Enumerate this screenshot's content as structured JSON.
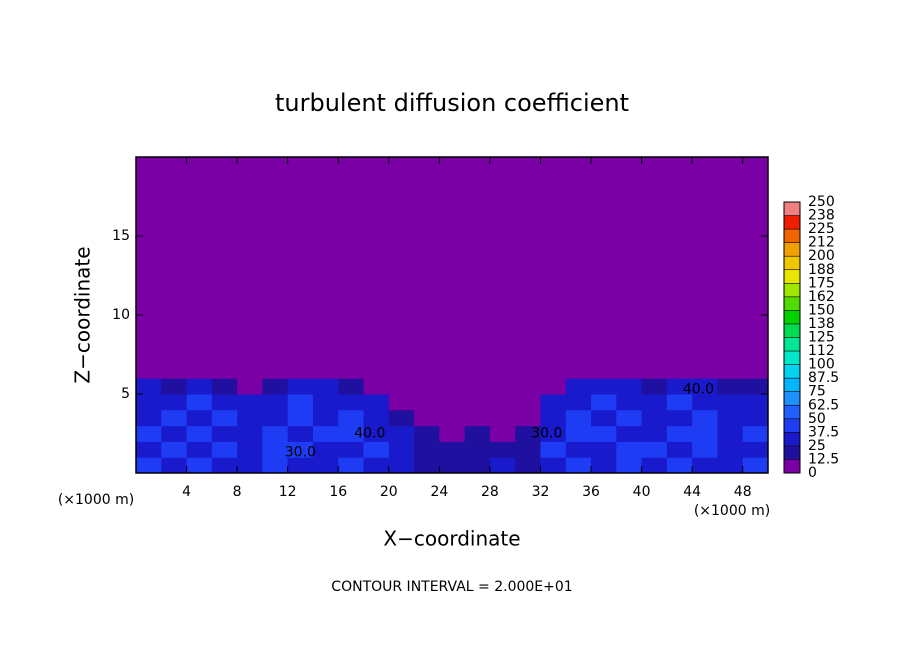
{
  "chart_data": {
    "type": "heatmap",
    "title": "turbulent diffusion coefficient",
    "xlabel": "X−coordinate",
    "ylabel": "Z−coordinate",
    "x_unit": "(×1000 m)",
    "y_unit": "(×1000 m)",
    "footnote": "CONTOUR INTERVAL = 2.000E+01",
    "xlim": [
      0,
      50
    ],
    "ylim": [
      0,
      20
    ],
    "xticks": [
      4,
      8,
      12,
      16,
      20,
      24,
      28,
      32,
      36,
      40,
      44,
      48
    ],
    "yticks": [
      5,
      10,
      15
    ],
    "x_edges": [
      0,
      2,
      4,
      6,
      8,
      10,
      12,
      14,
      16,
      18,
      20,
      22,
      24,
      26,
      28,
      30,
      32,
      34,
      36,
      38,
      40,
      42,
      44,
      46,
      48,
      50
    ],
    "y_edges": [
      0,
      1,
      2,
      3,
      4,
      5,
      6,
      20
    ],
    "z": [
      [
        45,
        35,
        40,
        30,
        35,
        40,
        30,
        35,
        40,
        30,
        25,
        20,
        15,
        20,
        25,
        15,
        35,
        45,
        30,
        40,
        35,
        40,
        30,
        35,
        40
      ],
      [
        35,
        45,
        30,
        40,
        35,
        45,
        40,
        30,
        35,
        40,
        30,
        20,
        15,
        20,
        15,
        20,
        40,
        30,
        35,
        40,
        45,
        35,
        40,
        30,
        35
      ],
      [
        40,
        30,
        45,
        30,
        35,
        40,
        35,
        45,
        40,
        35,
        25,
        15,
        10,
        15,
        10,
        15,
        35,
        45,
        40,
        30,
        35,
        40,
        45,
        35,
        40
      ],
      [
        35,
        40,
        35,
        40,
        30,
        35,
        40,
        35,
        45,
        30,
        15,
        10,
        10,
        5,
        5,
        10,
        30,
        40,
        35,
        40,
        30,
        35,
        40,
        35,
        30
      ],
      [
        30,
        35,
        40,
        30,
        25,
        35,
        40,
        35,
        30,
        25,
        10,
        5,
        5,
        5,
        5,
        5,
        25,
        35,
        40,
        35,
        30,
        40,
        35,
        30,
        35
      ],
      [
        25,
        20,
        25,
        15,
        10,
        20,
        30,
        25,
        20,
        10,
        5,
        0,
        0,
        0,
        0,
        0,
        10,
        25,
        30,
        25,
        20,
        30,
        25,
        20,
        15
      ],
      [
        0,
        0,
        0,
        0,
        0,
        0,
        0,
        0,
        0,
        0,
        0,
        0,
        0,
        0,
        0,
        0,
        0,
        0,
        0,
        0,
        0,
        0,
        0,
        0,
        0
      ]
    ],
    "cbar_ticks": [
      0,
      12.5,
      25,
      37.5,
      50,
      62.5,
      75,
      87.5,
      100,
      {
        "value": 112.5,
        "label": "112"
      },
      125,
      {
        "value": 137.5,
        "label": "138"
      },
      150,
      {
        "value": 162.5,
        "label": "162"
      },
      175,
      {
        "value": 187.5,
        "label": "188"
      },
      200,
      {
        "value": 212.5,
        "label": "212"
      },
      225,
      {
        "value": 237.5,
        "label": "238"
      },
      250
    ],
    "colors": [
      "#7a00a5",
      "#2010a0",
      "#1a1acd",
      "#1f3cf5",
      "#2060ff",
      "#1e90ff",
      "#00b4ff",
      "#00d2f0",
      "#00e6c8",
      "#00e696",
      "#00dc50",
      "#00d200",
      "#50dc00",
      "#a0e600",
      "#e6e600",
      "#f0c800",
      "#f0a000",
      "#f06400",
      "#f01e00",
      "#f08080"
    ],
    "contour_labels": [
      {
        "text": "40.0",
        "x": 44.5,
        "y": 5.3
      },
      {
        "text": "40.0",
        "x": 18.5,
        "y": 2.5
      },
      {
        "text": "30.0",
        "x": 13,
        "y": 1.3
      },
      {
        "text": "30.0",
        "x": 32.5,
        "y": 2.5
      }
    ]
  }
}
